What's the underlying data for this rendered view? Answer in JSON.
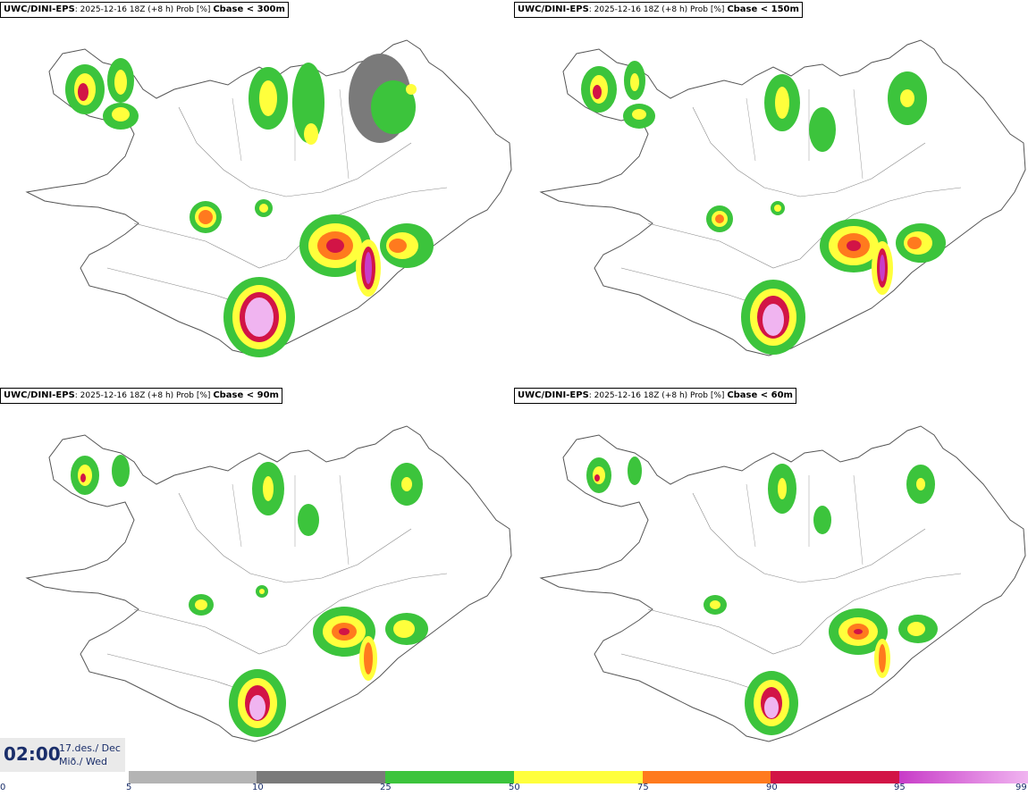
{
  "panels": [
    {
      "model": "UWC/DINI-EPS",
      "meta": ": 2025-12-16 18Z (+8 h) Prob [%] ",
      "var": "Cbase < 300m"
    },
    {
      "model": "UWC/DINI-EPS",
      "meta": ": 2025-12-16 18Z (+8 h) Prob [%] ",
      "var": "Cbase < 150m"
    },
    {
      "model": "UWC/DINI-EPS",
      "meta": ": 2025-12-16 18Z (+8 h) Prob [%] ",
      "var": "Cbase < 90m"
    },
    {
      "model": "UWC/DINI-EPS",
      "meta": ": 2025-12-16 18Z (+8 h) Prob [%] ",
      "var": "Cbase < 60m"
    }
  ],
  "time": {
    "clock": "02:00",
    "date_line": "17.des./ Dec",
    "day_line": "Mið./ Wed"
  },
  "legend": {
    "labels": [
      "0",
      "5",
      "10",
      "25",
      "50",
      "75",
      "90",
      "95",
      "99"
    ],
    "colors": {
      "c5": "#b4b4b4",
      "c10": "#7a7a7a",
      "c25": "#3cc43c",
      "c50": "#ffff3c",
      "c75": "#ff7a1e",
      "c90": "#d21446",
      "c95": "#c83cc8",
      "c99": "#f0b4f0"
    }
  }
}
